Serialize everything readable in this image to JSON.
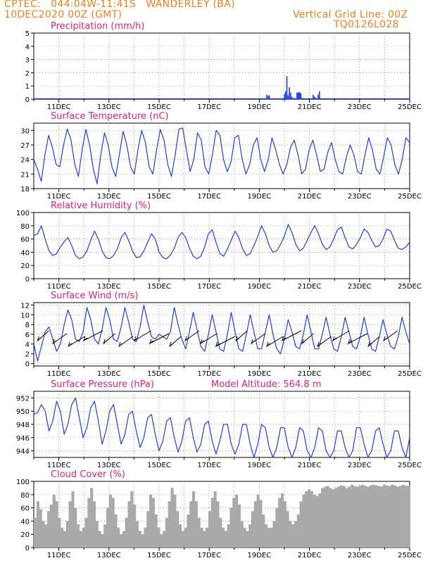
{
  "header": {
    "line1_left": "CPTEC:   044:04W-11:41S   WANDERLEY (BA)",
    "line2_left": "10DEC2020 00Z (GMT)",
    "line1_right": "Vertical Grid Line: 00Z",
    "line2_right": "TQ0126L028"
  },
  "x_labels": [
    "11DEC",
    "13DEC",
    "15DEC",
    "17DEC",
    "19DEC",
    "21DEC",
    "23DEC",
    "25DEC"
  ],
  "colors": {
    "header": "#f07f1c",
    "title": "#e0207a",
    "line": "#1f3fe0",
    "bar_cloud": "#a9a9a9",
    "wind_arrow": "#000000"
  },
  "chart_data": [
    {
      "type": "bar",
      "title": "Precipitation (mm/h)",
      "ylim": [
        0,
        5
      ],
      "yticks": [
        "0",
        "1",
        "2",
        "3",
        "4",
        "5"
      ],
      "x": [
        9.3,
        9.35,
        9.4,
        10.0,
        10.05,
        10.1,
        10.15,
        10.2,
        10.25,
        10.3,
        10.35,
        10.4,
        10.45,
        10.5,
        10.55,
        10.58,
        10.62,
        10.66,
        10.72,
        11.15,
        11.2,
        11.25,
        11.35,
        11.4
      ],
      "values": [
        0.35,
        0.25,
        0.3,
        0.4,
        0.6,
        1.75,
        0.3,
        0.9,
        0.5,
        0.2,
        0.05,
        0.1,
        0.05,
        0.5,
        0.5,
        0.55,
        0.5,
        0.45,
        0.1,
        0.35,
        0.2,
        0.1,
        0.35,
        0.6
      ],
      "x_note_days": "days since 10DEC2020 00Z"
    },
    {
      "type": "line",
      "title": "Surface Temperature (nC)",
      "ylim": [
        18,
        31.5
      ],
      "yticks": [
        "18",
        "21",
        "24",
        "27",
        "30"
      ],
      "values": [
        24,
        22,
        19.5,
        25,
        29,
        26.5,
        23,
        22.5,
        27,
        30.3,
        28,
        23,
        20.5,
        26,
        30.2,
        27,
        22,
        19,
        25,
        29.5,
        27,
        22.5,
        20.5,
        25,
        29.8,
        27,
        22.5,
        21,
        26,
        30,
        27.5,
        22.5,
        21,
        26,
        30.2,
        28,
        23,
        20.5,
        25,
        30.3,
        30.5,
        26,
        21.5,
        24,
        29.5,
        28,
        22.5,
        21,
        25,
        30,
        29,
        24,
        21.5,
        23.5,
        28.5,
        29,
        24,
        21,
        23,
        27,
        28.5,
        24,
        21.5,
        24,
        28.5,
        26,
        23,
        21,
        23,
        26.5,
        28,
        25,
        21,
        22,
        26,
        28,
        25,
        21.5,
        22,
        25.5,
        27.5,
        24,
        21.5,
        21,
        24.5,
        27,
        25,
        21.5,
        21,
        25,
        28.5,
        26,
        22,
        21,
        24.5,
        28.5,
        27,
        23,
        21,
        24,
        28.5,
        27.5
      ]
    },
    {
      "type": "line",
      "title": "Relative Humidity (%)",
      "ylim": [
        0,
        100
      ],
      "yticks": [
        "0",
        "20",
        "40",
        "60",
        "80",
        "100"
      ],
      "values": [
        65,
        68,
        80,
        60,
        42,
        35,
        38,
        48,
        56,
        62,
        50,
        35,
        30,
        33,
        42,
        58,
        72,
        60,
        42,
        32,
        30,
        35,
        45,
        62,
        70,
        58,
        42,
        32,
        33,
        42,
        55,
        68,
        60,
        40,
        32,
        30,
        36,
        46,
        62,
        70,
        62,
        46,
        34,
        30,
        34,
        48,
        68,
        74,
        55,
        38,
        34,
        45,
        58,
        72,
        62,
        45,
        35,
        38,
        50,
        64,
        80,
        68,
        50,
        40,
        42,
        52,
        64,
        82,
        70,
        52,
        42,
        46,
        58,
        70,
        80,
        68,
        52,
        44,
        48,
        60,
        74,
        78,
        62,
        48,
        45,
        52,
        62,
        75,
        70,
        58,
        48,
        50,
        60,
        75,
        72,
        58,
        46,
        44,
        48,
        55
      ]
    },
    {
      "type": "line",
      "title": "Surface Wind (m/s)",
      "ylim": [
        -0.5,
        12.5
      ],
      "yticks": [
        "0",
        "2",
        "4",
        "6",
        "8",
        "10",
        "12"
      ],
      "values": [
        4,
        0.5,
        3.5,
        6.5,
        7.5,
        5,
        2.5,
        4,
        8,
        11,
        9,
        5,
        4.5,
        6.5,
        11.5,
        9,
        5,
        4,
        7,
        11.5,
        9,
        5,
        4.5,
        7.5,
        11.5,
        8.5,
        5,
        4.5,
        7.5,
        12,
        8.5,
        5.5,
        5,
        6,
        5.5,
        5,
        6.5,
        11.5,
        8,
        5,
        3,
        6.5,
        10.5,
        7,
        3.5,
        2.5,
        6,
        10,
        6.5,
        3,
        2.5,
        6,
        10.5,
        6.5,
        3,
        2.5,
        6,
        10,
        6.5,
        3,
        3,
        6.5,
        10,
        6,
        3,
        2,
        5,
        9,
        6.5,
        3.5,
        3,
        6,
        10,
        6.5,
        3,
        3,
        6,
        9.5,
        6,
        3,
        2.5,
        5.5,
        9.5,
        6.5,
        3.5,
        3,
        5.5,
        9.5,
        6,
        3,
        2.5,
        5.5,
        9,
        6,
        3.5,
        3,
        5.5,
        9.5,
        6.5,
        4
      ],
      "wind_barbs": "direction arrows pointing southwest-ish toward lower-left, drawn at 6 hr intervals"
    },
    {
      "type": "line",
      "title": "Surface Pressure (hPa)",
      "annotation": "Model Altitude: 564.8 m",
      "ylim": [
        943,
        953
      ],
      "yticks": [
        "944",
        "946",
        "948",
        "950",
        "952"
      ],
      "values": [
        949.5,
        949.8,
        951,
        950,
        947,
        948.5,
        951.5,
        950,
        946.5,
        948,
        951,
        952,
        949,
        946,
        947.5,
        950.5,
        951.5,
        948.5,
        945,
        947,
        950,
        951,
        948,
        945,
        946.5,
        949.5,
        950,
        947,
        944.5,
        946,
        949,
        949.5,
        946.5,
        944,
        945.5,
        948.5,
        949,
        946,
        943.8,
        945.5,
        948.5,
        949,
        946,
        943.8,
        945,
        948,
        948.5,
        945.5,
        943.5,
        945.5,
        948,
        948,
        945,
        943.5,
        945,
        948,
        948,
        945,
        943,
        945,
        948,
        947.5,
        944.5,
        943,
        944.5,
        947.5,
        947.5,
        944.5,
        943,
        944.5,
        947.5,
        947,
        944,
        943,
        944.5,
        947.5,
        947,
        944,
        943,
        944,
        947,
        947,
        944.5,
        943,
        944,
        947.5,
        947.5,
        945,
        943,
        944,
        947,
        947.5,
        945,
        943,
        944,
        947,
        947,
        944.5,
        943,
        946
      ]
    },
    {
      "type": "bar",
      "title": "Cloud Cover (%)",
      "ylim": [
        0,
        100
      ],
      "yticks": [
        "0",
        "20",
        "40",
        "60",
        "80",
        "100"
      ],
      "values": [
        45,
        70,
        58,
        40,
        35,
        55,
        65,
        80,
        70,
        45,
        30,
        25,
        40,
        70,
        85,
        60,
        35,
        25,
        30,
        45,
        75,
        90,
        70,
        40,
        25,
        20,
        35,
        60,
        80,
        75,
        50,
        30,
        20,
        25,
        45,
        70,
        85,
        65,
        40,
        25,
        20,
        30,
        55,
        80,
        75,
        50,
        30,
        20,
        25,
        45,
        70,
        90,
        80,
        55,
        35,
        25,
        30,
        50,
        70,
        85,
        70,
        45,
        30,
        25,
        30,
        55,
        75,
        85,
        70,
        45,
        30,
        25,
        35,
        60,
        75,
        80,
        65,
        40,
        30,
        25,
        35,
        55,
        70,
        80,
        72,
        50,
        35,
        30,
        30,
        40,
        60,
        75,
        82,
        70,
        55,
        40,
        35,
        40,
        50,
        70,
        80,
        85,
        88,
        85,
        80,
        78,
        82,
        90,
        92,
        93,
        90,
        88,
        90,
        92,
        94,
        93,
        90,
        92,
        95,
        93,
        92,
        94,
        95,
        93,
        92,
        94,
        95,
        94,
        93,
        92,
        95,
        94,
        93,
        95,
        94,
        92,
        93,
        95,
        94,
        93
      ]
    }
  ]
}
